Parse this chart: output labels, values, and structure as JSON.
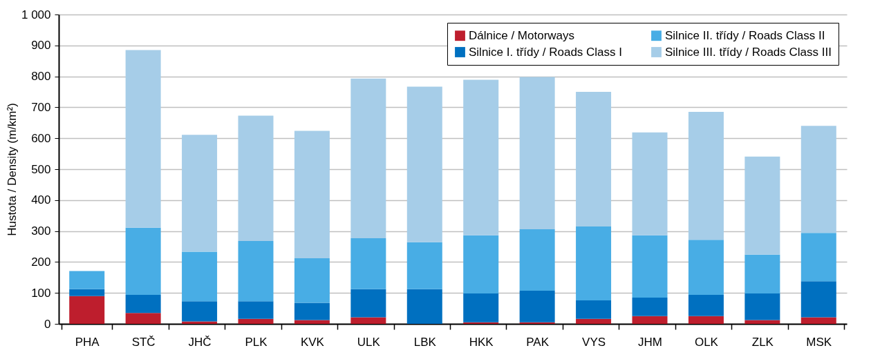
{
  "chart_data": {
    "type": "bar",
    "stacked": true,
    "ylabel": "Hustota / Density (m/km²)",
    "categories": [
      "PHA",
      "STČ",
      "JHČ",
      "PLK",
      "KVK",
      "ULK",
      "LBK",
      "HKK",
      "PAK",
      "VYS",
      "JHM",
      "OLK",
      "ZLK",
      "MSK"
    ],
    "series": [
      {
        "name": "Dálnice / Motorways",
        "color": "#be1e2d",
        "values": [
          90,
          35,
          8,
          16,
          12,
          21,
          0,
          5,
          5,
          16,
          25,
          25,
          12,
          21
        ]
      },
      {
        "name": "Silnice I. třídy / Roads Class I",
        "color": "#0070c0",
        "values": [
          22,
          59,
          65,
          57,
          56,
          91,
          112,
          93,
          102,
          60,
          60,
          69,
          86,
          117
        ]
      },
      {
        "name": "Silnice II. třídy / Roads Class II",
        "color": "#48ade5",
        "values": [
          59,
          217,
          160,
          195,
          144,
          165,
          152,
          188,
          199,
          239,
          201,
          178,
          126,
          156
        ]
      },
      {
        "name": "Silnice III. třídy / Roads Class III",
        "color": "#a6cde8",
        "values": [
          0,
          574,
          378,
          405,
          412,
          516,
          503,
          503,
          492,
          435,
          333,
          413,
          317,
          346
        ]
      }
    ],
    "ylim": [
      0,
      1000
    ],
    "yticks": [
      0,
      100,
      200,
      300,
      400,
      500,
      600,
      700,
      800,
      900,
      {
        "value": 1000,
        "label": "1 000"
      }
    ],
    "grid": "y",
    "legend": "top right"
  }
}
